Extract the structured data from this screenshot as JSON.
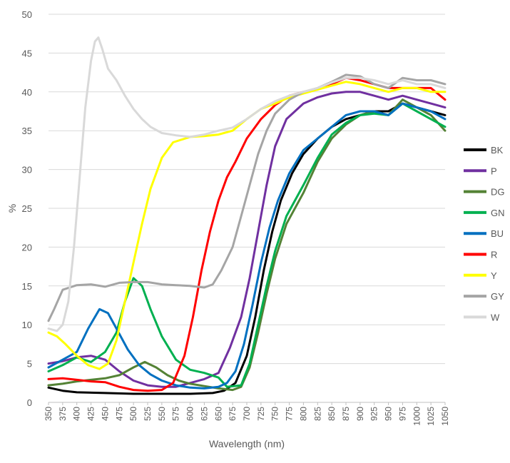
{
  "chart_data": {
    "type": "line",
    "title": "",
    "xlabel": "Wavelength (nm)",
    "ylabel": "%",
    "xlim": [
      350,
      1050
    ],
    "ylim": [
      0,
      50
    ],
    "x_ticks": [
      "350",
      "375",
      "400",
      "425",
      "450",
      "475",
      "500",
      "525",
      "550",
      "575",
      "600",
      "625",
      "650",
      "675",
      "700",
      "725",
      "750",
      "775",
      "800",
      "825",
      "850",
      "875",
      "900",
      "925",
      "950",
      "975",
      "1000",
      "1025",
      "1050"
    ],
    "y_ticks": [
      "0",
      "5",
      "10",
      "15",
      "20",
      "25",
      "30",
      "35",
      "40",
      "45",
      "50"
    ],
    "grid": "horizontal",
    "legend_position": "right",
    "series": [
      {
        "name": "BK",
        "color": "#000000",
        "points": [
          [
            350,
            1.9
          ],
          [
            375,
            1.5
          ],
          [
            400,
            1.3
          ],
          [
            450,
            1.2
          ],
          [
            500,
            1.1
          ],
          [
            550,
            1.1
          ],
          [
            600,
            1.1
          ],
          [
            640,
            1.2
          ],
          [
            660,
            1.5
          ],
          [
            680,
            2.5
          ],
          [
            700,
            6
          ],
          [
            715,
            11
          ],
          [
            730,
            17
          ],
          [
            745,
            22
          ],
          [
            760,
            26
          ],
          [
            780,
            29.5
          ],
          [
            800,
            32
          ],
          [
            825,
            34
          ],
          [
            850,
            35.5
          ],
          [
            875,
            36.5
          ],
          [
            900,
            37
          ],
          [
            925,
            37.5
          ],
          [
            950,
            37.5
          ],
          [
            975,
            38.5
          ],
          [
            1000,
            38
          ],
          [
            1025,
            37.5
          ],
          [
            1050,
            37
          ]
        ]
      },
      {
        "name": "P",
        "color": "#7030a0",
        "points": [
          [
            350,
            5
          ],
          [
            375,
            5.3
          ],
          [
            400,
            5.8
          ],
          [
            425,
            6
          ],
          [
            450,
            5.5
          ],
          [
            475,
            4
          ],
          [
            500,
            2.8
          ],
          [
            525,
            2.2
          ],
          [
            550,
            2
          ],
          [
            575,
            2
          ],
          [
            600,
            2.5
          ],
          [
            625,
            3
          ],
          [
            650,
            3.8
          ],
          [
            670,
            7
          ],
          [
            690,
            11
          ],
          [
            705,
            16
          ],
          [
            720,
            22
          ],
          [
            735,
            28
          ],
          [
            750,
            33
          ],
          [
            770,
            36.5
          ],
          [
            800,
            38.5
          ],
          [
            825,
            39.3
          ],
          [
            850,
            39.8
          ],
          [
            875,
            40
          ],
          [
            900,
            40
          ],
          [
            925,
            39.5
          ],
          [
            950,
            39
          ],
          [
            975,
            39.5
          ],
          [
            1000,
            39
          ],
          [
            1025,
            38.5
          ],
          [
            1050,
            38
          ]
        ]
      },
      {
        "name": "DG",
        "color": "#548235",
        "points": [
          [
            350,
            2.2
          ],
          [
            375,
            2.4
          ],
          [
            400,
            2.7
          ],
          [
            425,
            2.9
          ],
          [
            450,
            3.1
          ],
          [
            475,
            3.5
          ],
          [
            500,
            4.5
          ],
          [
            520,
            5.2
          ],
          [
            540,
            4.5
          ],
          [
            560,
            3.5
          ],
          [
            580,
            2.8
          ],
          [
            600,
            2.4
          ],
          [
            625,
            2.1
          ],
          [
            650,
            1.8
          ],
          [
            675,
            1.6
          ],
          [
            690,
            2
          ],
          [
            705,
            4.5
          ],
          [
            720,
            9
          ],
          [
            735,
            14
          ],
          [
            750,
            18.5
          ],
          [
            770,
            23
          ],
          [
            800,
            27
          ],
          [
            825,
            31
          ],
          [
            850,
            34
          ],
          [
            875,
            35.8
          ],
          [
            900,
            37
          ],
          [
            925,
            37.5
          ],
          [
            950,
            37
          ],
          [
            975,
            39
          ],
          [
            1000,
            38
          ],
          [
            1025,
            37
          ],
          [
            1050,
            35
          ]
        ]
      },
      {
        "name": "GN",
        "color": "#00b050",
        "points": [
          [
            350,
            4
          ],
          [
            375,
            4.8
          ],
          [
            400,
            5.8
          ],
          [
            425,
            5.2
          ],
          [
            450,
            6.5
          ],
          [
            470,
            9
          ],
          [
            485,
            13
          ],
          [
            500,
            16
          ],
          [
            515,
            15
          ],
          [
            530,
            12
          ],
          [
            550,
            8.5
          ],
          [
            575,
            5.5
          ],
          [
            600,
            4.2
          ],
          [
            625,
            3.8
          ],
          [
            650,
            3.2
          ],
          [
            665,
            2
          ],
          [
            690,
            2.2
          ],
          [
            705,
            5
          ],
          [
            720,
            10
          ],
          [
            735,
            15
          ],
          [
            750,
            19.5
          ],
          [
            770,
            24
          ],
          [
            800,
            28
          ],
          [
            825,
            31.5
          ],
          [
            850,
            34.5
          ],
          [
            875,
            36
          ],
          [
            900,
            37
          ],
          [
            925,
            37.2
          ],
          [
            950,
            37
          ],
          [
            975,
            38.5
          ],
          [
            1000,
            37.5
          ],
          [
            1025,
            36.5
          ],
          [
            1050,
            35.5
          ]
        ]
      },
      {
        "name": "BU",
        "color": "#0070c0",
        "points": [
          [
            350,
            4.5
          ],
          [
            375,
            5.5
          ],
          [
            400,
            6.5
          ],
          [
            420,
            9.5
          ],
          [
            440,
            12
          ],
          [
            455,
            11.5
          ],
          [
            470,
            9.5
          ],
          [
            490,
            6.8
          ],
          [
            510,
            4.8
          ],
          [
            530,
            3.6
          ],
          [
            550,
            2.8
          ],
          [
            575,
            2.2
          ],
          [
            600,
            1.9
          ],
          [
            625,
            1.8
          ],
          [
            650,
            2
          ],
          [
            665,
            2.5
          ],
          [
            680,
            4
          ],
          [
            695,
            7.5
          ],
          [
            710,
            12.5
          ],
          [
            725,
            18
          ],
          [
            740,
            22.5
          ],
          [
            755,
            26
          ],
          [
            775,
            29.5
          ],
          [
            800,
            32.5
          ],
          [
            825,
            34
          ],
          [
            850,
            35.5
          ],
          [
            875,
            37
          ],
          [
            900,
            37.5
          ],
          [
            925,
            37.5
          ],
          [
            950,
            37
          ],
          [
            975,
            38.5
          ],
          [
            1000,
            38
          ],
          [
            1025,
            37.5
          ],
          [
            1050,
            36.5
          ]
        ]
      },
      {
        "name": "R",
        "color": "#ff0000",
        "points": [
          [
            350,
            3
          ],
          [
            375,
            3.1
          ],
          [
            400,
            2.9
          ],
          [
            425,
            2.7
          ],
          [
            450,
            2.6
          ],
          [
            475,
            2
          ],
          [
            500,
            1.6
          ],
          [
            525,
            1.5
          ],
          [
            550,
            1.6
          ],
          [
            570,
            2.5
          ],
          [
            590,
            6
          ],
          [
            605,
            11
          ],
          [
            620,
            17
          ],
          [
            635,
            22
          ],
          [
            650,
            26
          ],
          [
            665,
            29
          ],
          [
            680,
            31
          ],
          [
            700,
            34
          ],
          [
            725,
            36.5
          ],
          [
            750,
            38.3
          ],
          [
            775,
            39.5
          ],
          [
            800,
            40
          ],
          [
            825,
            40.3
          ],
          [
            850,
            41
          ],
          [
            875,
            41.8
          ],
          [
            900,
            41.5
          ],
          [
            925,
            41
          ],
          [
            950,
            40.5
          ],
          [
            975,
            40.5
          ],
          [
            1000,
            40.5
          ],
          [
            1025,
            40.5
          ],
          [
            1050,
            39
          ]
        ]
      },
      {
        "name": "Y",
        "color": "#ffff00",
        "points": [
          [
            350,
            9
          ],
          [
            365,
            8.5
          ],
          [
            380,
            7.5
          ],
          [
            400,
            6
          ],
          [
            420,
            4.8
          ],
          [
            440,
            4.3
          ],
          [
            455,
            5
          ],
          [
            470,
            8
          ],
          [
            485,
            13
          ],
          [
            500,
            18
          ],
          [
            515,
            23
          ],
          [
            530,
            27.5
          ],
          [
            550,
            31.5
          ],
          [
            570,
            33.5
          ],
          [
            600,
            34.2
          ],
          [
            625,
            34.3
          ],
          [
            650,
            34.5
          ],
          [
            675,
            35
          ],
          [
            700,
            36.5
          ],
          [
            725,
            37.8
          ],
          [
            750,
            38.5
          ],
          [
            775,
            39.3
          ],
          [
            800,
            39.8
          ],
          [
            825,
            40.3
          ],
          [
            850,
            40.8
          ],
          [
            875,
            41.3
          ],
          [
            900,
            41
          ],
          [
            925,
            40.5
          ],
          [
            950,
            40
          ],
          [
            975,
            40.5
          ],
          [
            1000,
            40.5
          ],
          [
            1025,
            40
          ],
          [
            1050,
            40
          ]
        ]
      },
      {
        "name": "GY",
        "color": "#a5a5a5",
        "points": [
          [
            350,
            10.5
          ],
          [
            360,
            12
          ],
          [
            375,
            14.5
          ],
          [
            400,
            15.1
          ],
          [
            425,
            15.2
          ],
          [
            450,
            14.9
          ],
          [
            475,
            15.4
          ],
          [
            500,
            15.5
          ],
          [
            525,
            15.5
          ],
          [
            550,
            15.2
          ],
          [
            575,
            15.1
          ],
          [
            600,
            15
          ],
          [
            625,
            14.8
          ],
          [
            640,
            15.2
          ],
          [
            655,
            17
          ],
          [
            675,
            20
          ],
          [
            690,
            24
          ],
          [
            705,
            28
          ],
          [
            720,
            32
          ],
          [
            735,
            35
          ],
          [
            750,
            37.2
          ],
          [
            775,
            39
          ],
          [
            800,
            40
          ],
          [
            825,
            40.5
          ],
          [
            850,
            41.3
          ],
          [
            875,
            42.2
          ],
          [
            900,
            42
          ],
          [
            925,
            41
          ],
          [
            950,
            40.5
          ],
          [
            975,
            41.8
          ],
          [
            1000,
            41.5
          ],
          [
            1025,
            41.5
          ],
          [
            1050,
            41
          ]
        ]
      },
      {
        "name": "W",
        "color": "#d9d9d9",
        "points": [
          [
            350,
            9.5
          ],
          [
            365,
            9.2
          ],
          [
            375,
            10
          ],
          [
            385,
            13
          ],
          [
            395,
            20
          ],
          [
            405,
            29
          ],
          [
            415,
            38
          ],
          [
            425,
            44
          ],
          [
            432,
            46.5
          ],
          [
            438,
            47
          ],
          [
            445,
            45.5
          ],
          [
            455,
            43
          ],
          [
            470,
            41.5
          ],
          [
            485,
            39.5
          ],
          [
            500,
            37.8
          ],
          [
            515,
            36.5
          ],
          [
            530,
            35.5
          ],
          [
            550,
            34.7
          ],
          [
            575,
            34.4
          ],
          [
            600,
            34.2
          ],
          [
            625,
            34.5
          ],
          [
            650,
            35
          ],
          [
            675,
            35.4
          ],
          [
            700,
            36.5
          ],
          [
            725,
            37.8
          ],
          [
            750,
            38.8
          ],
          [
            775,
            39.5
          ],
          [
            800,
            40
          ],
          [
            825,
            40.5
          ],
          [
            850,
            41.2
          ],
          [
            875,
            41.8
          ],
          [
            900,
            41.8
          ],
          [
            925,
            41.5
          ],
          [
            950,
            41
          ],
          [
            975,
            41.5
          ],
          [
            1000,
            41
          ],
          [
            1025,
            41
          ],
          [
            1050,
            40.5
          ]
        ]
      }
    ]
  }
}
